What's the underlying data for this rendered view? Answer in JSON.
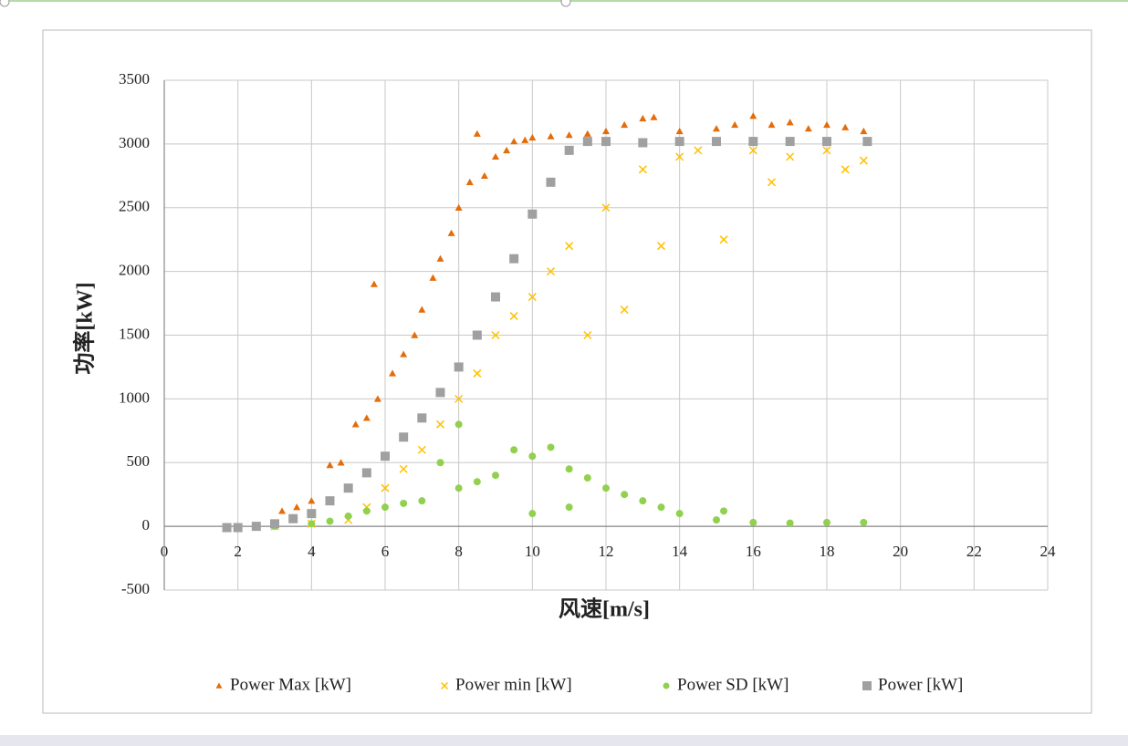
{
  "chart_data": {
    "type": "scatter",
    "xlabel": "风速[m/s]",
    "ylabel": "功率[kW]",
    "xlim": [
      0,
      24
    ],
    "xticks": [
      0,
      2,
      4,
      6,
      8,
      10,
      12,
      14,
      16,
      18,
      20,
      22,
      24
    ],
    "ylim": [
      -500,
      3500
    ],
    "yticks": [
      -500,
      0,
      500,
      1000,
      1500,
      2000,
      2500,
      3000,
      3500
    ],
    "grid": true,
    "legend": "bottom",
    "series": [
      {
        "name": "Power Max [kW]",
        "color": "#e46c0a",
        "marker": "triangle",
        "x": [
          2.5,
          3.2,
          3.6,
          4.0,
          4.5,
          4.8,
          5.2,
          5.5,
          5.7,
          5.8,
          6.2,
          6.5,
          6.8,
          7.0,
          7.3,
          7.5,
          7.8,
          8.0,
          8.3,
          8.5,
          8.7,
          9.0,
          9.3,
          9.5,
          9.8,
          10.0,
          10.5,
          11.0,
          11.5,
          12.0,
          12.5,
          13.0,
          13.3,
          14.0,
          15.0,
          15.5,
          16.0,
          16.5,
          17.0,
          17.5,
          18.0,
          18.5,
          19.0
        ],
        "values": [
          0,
          120,
          150,
          200,
          480,
          500,
          800,
          850,
          1900,
          1000,
          1200,
          1350,
          1500,
          1700,
          1950,
          2100,
          2300,
          2500,
          2700,
          3080,
          2750,
          2900,
          2950,
          3020,
          3030,
          3050,
          3060,
          3070,
          3080,
          3100,
          3150,
          3200,
          3210,
          3100,
          3120,
          3150,
          3220,
          3150,
          3170,
          3120,
          3150,
          3130,
          3100
        ]
      },
      {
        "name": "Power min [kW]",
        "color": "#ffc000",
        "marker": "x",
        "x": [
          3.0,
          4.0,
          5.0,
          5.5,
          6.0,
          6.5,
          7.0,
          7.5,
          8.0,
          8.5,
          9.0,
          9.5,
          10.0,
          10.5,
          11.0,
          11.5,
          12.0,
          12.5,
          13.0,
          13.5,
          14.0,
          14.5,
          15.2,
          16.0,
          16.5,
          17.0,
          18.0,
          18.5,
          19.0
        ],
        "values": [
          0,
          20,
          50,
          150,
          300,
          450,
          600,
          800,
          1000,
          1200,
          1500,
          1650,
          1800,
          2000,
          2200,
          1500,
          2500,
          1700,
          2800,
          2200,
          2900,
          2950,
          2250,
          2950,
          2700,
          2900,
          2950,
          2800,
          2870
        ]
      },
      {
        "name": "Power SD [kW]",
        "color": "#92d050",
        "marker": "circle",
        "x": [
          3.0,
          4.0,
          4.5,
          5.0,
          5.5,
          6.0,
          6.5,
          7.0,
          7.5,
          8.0,
          8.0,
          8.5,
          9.0,
          9.5,
          10.0,
          10.0,
          10.5,
          11.0,
          11.0,
          11.5,
          12.0,
          12.5,
          13.0,
          13.5,
          14.0,
          15.0,
          15.2,
          16.0,
          17.0,
          18.0,
          19.0
        ],
        "values": [
          0,
          20,
          40,
          80,
          120,
          150,
          180,
          200,
          500,
          300,
          800,
          350,
          400,
          600,
          550,
          100,
          620,
          450,
          150,
          380,
          300,
          250,
          200,
          150,
          100,
          50,
          120,
          30,
          25,
          30,
          30
        ]
      },
      {
        "name": "Power [kW]",
        "color": "#a0a0a0",
        "marker": "square",
        "x": [
          1.7,
          2.0,
          2.5,
          3.0,
          3.5,
          4.0,
          4.5,
          5.0,
          5.5,
          6.0,
          6.5,
          7.0,
          7.5,
          8.0,
          8.5,
          9.0,
          9.5,
          10.0,
          10.5,
          11.0,
          11.5,
          12.0,
          13.0,
          14.0,
          15.0,
          16.0,
          17.0,
          18.0,
          19.1
        ],
        "values": [
          -10,
          -10,
          0,
          20,
          60,
          100,
          200,
          300,
          420,
          550,
          700,
          850,
          1050,
          1250,
          1500,
          1800,
          2100,
          2450,
          2700,
          2950,
          3020,
          3020,
          3010,
          3020,
          3020,
          3020,
          3020,
          3020,
          3020
        ]
      }
    ]
  }
}
